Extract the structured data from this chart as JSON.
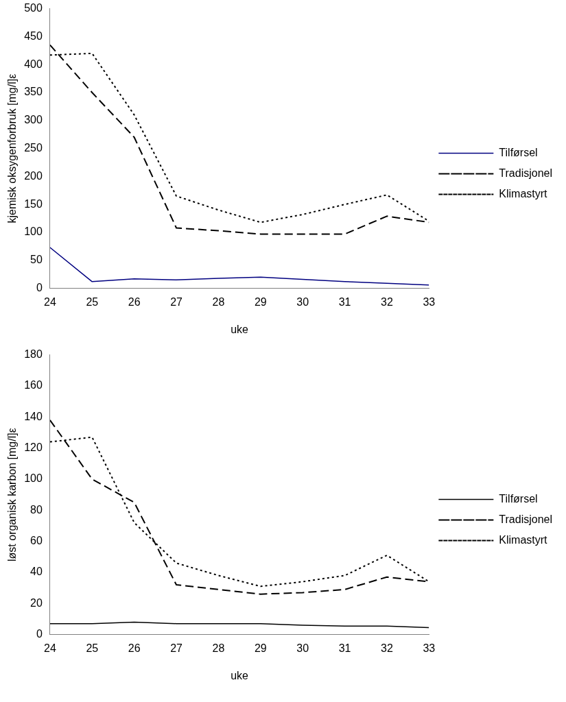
{
  "chart_data": [
    {
      "type": "line",
      "xlabel": "uke",
      "ylabel": "kjemisk oksygenforbruk [mg/l]ε",
      "x": [
        24,
        25,
        26,
        27,
        28,
        29,
        30,
        31,
        32,
        33
      ],
      "xlim": [
        24,
        33
      ],
      "xticks": [
        24,
        25,
        26,
        27,
        28,
        29,
        30,
        31,
        32,
        33
      ],
      "ylim": [
        0,
        500
      ],
      "yticks": [
        0,
        50,
        100,
        150,
        200,
        250,
        300,
        350,
        400,
        450,
        500
      ],
      "grid": false,
      "legend": "right",
      "marker": "none",
      "series": [
        {
          "name": "Tilførsel",
          "color": "#000080",
          "line_style": "solid",
          "values": [
            73,
            12,
            17,
            15,
            18,
            20,
            16,
            12,
            9,
            6
          ]
        },
        {
          "name": "Tradisjonel",
          "color": "#000000",
          "line_style": "dashed",
          "values": [
            435,
            350,
            270,
            108,
            103,
            97,
            97,
            97,
            129,
            118
          ]
        },
        {
          "name": "Klimastyrt",
          "color": "#000000",
          "line_style": "dotted",
          "values": [
            417,
            420,
            310,
            165,
            140,
            118,
            132,
            150,
            167,
            120
          ]
        }
      ]
    },
    {
      "type": "line",
      "xlabel": "uke",
      "ylabel": "løst organisk karbon [mg/l]ε",
      "x": [
        24,
        25,
        26,
        27,
        28,
        29,
        30,
        31,
        32,
        33
      ],
      "xlim": [
        24,
        33
      ],
      "xticks": [
        24,
        25,
        26,
        27,
        28,
        29,
        30,
        31,
        32,
        33
      ],
      "ylim": [
        0,
        180
      ],
      "yticks": [
        0,
        20,
        40,
        60,
        80,
        100,
        120,
        140,
        160,
        180
      ],
      "grid": false,
      "legend": "right",
      "marker": "none",
      "series": [
        {
          "name": "Tilførsel",
          "color": "#000000",
          "line_style": "solid",
          "values": [
            7,
            7,
            8,
            7,
            7,
            7,
            6,
            5.5,
            5.5,
            4.5
          ]
        },
        {
          "name": "Tradisjonel",
          "color": "#000000",
          "line_style": "dashed",
          "values": [
            138,
            100,
            85,
            32,
            29,
            26,
            27,
            29,
            37,
            34
          ]
        },
        {
          "name": "Klimastyrt",
          "color": "#000000",
          "line_style": "dotted",
          "values": [
            124,
            127,
            72,
            46,
            38,
            31,
            34,
            38,
            51,
            34
          ]
        }
      ]
    }
  ]
}
